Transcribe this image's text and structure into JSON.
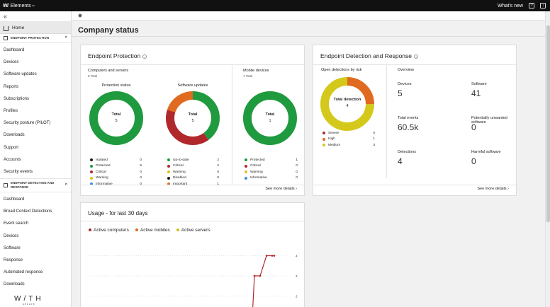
{
  "topbar": {
    "brand": "Elements",
    "whats_new": "What's new"
  },
  "sidebar": {
    "home": "Home",
    "section1": "ENDPOINT PROTECTION",
    "ep_items": [
      "Dashboard",
      "Devices",
      "Software updates",
      "Reports",
      "Subscriptions",
      "Profiles",
      "Security posture (PILOT)",
      "Downloads",
      "Support",
      "Accounts",
      "Security events"
    ],
    "section2": "ENDPOINT DETECTION AND RESPONSE",
    "edr_items": [
      "Dashboard",
      "Broad Context Detections",
      "Event search",
      "Devices",
      "Software",
      "Response",
      "Automated response",
      "Downloads"
    ],
    "logo": "W/TH",
    "logo_sub": "secure"
  },
  "page": {
    "title": "Company status"
  },
  "endpoint_protection": {
    "title": "Endpoint Protection",
    "computers_title": "Computers and servers",
    "computers_total": "5 Total",
    "protection_status": {
      "title": "Protection status",
      "center_label": "Total",
      "center_value": "5",
      "legend": [
        {
          "label": "Isolated",
          "value": "0",
          "color": "#1a1a1a"
        },
        {
          "label": "Protected",
          "value": "5",
          "color": "#1f9a3e"
        },
        {
          "label": "Critical",
          "value": "0",
          "color": "#b0282c"
        },
        {
          "label": "Warning",
          "value": "0",
          "color": "#e0c01a"
        },
        {
          "label": "Informative",
          "value": "0",
          "color": "#3b8fd6"
        }
      ]
    },
    "software_updates": {
      "title": "Software updates",
      "center_label": "Total",
      "center_value": "5",
      "legend": [
        {
          "label": "Up-to-date",
          "value": "2",
          "color": "#1f9a3e"
        },
        {
          "label": "Critical",
          "value": "2",
          "color": "#b0282c"
        },
        {
          "label": "Warning",
          "value": "0",
          "color": "#e0c01a"
        },
        {
          "label": "Disabled",
          "value": "0",
          "color": "#1a1a1a"
        },
        {
          "label": "Important",
          "value": "1",
          "color": "#e06a1f"
        }
      ]
    },
    "mobile": {
      "title": "Mobile devices",
      "total": "1 Total",
      "center_label": "Total",
      "center_value": "1",
      "legend": [
        {
          "label": "Protected",
          "value": "1",
          "color": "#1f9a3e"
        },
        {
          "label": "Critical",
          "value": "0",
          "color": "#b0282c"
        },
        {
          "label": "Warning",
          "value": "0",
          "color": "#e0c01a"
        },
        {
          "label": "Informative",
          "value": "0",
          "color": "#3b8fd6"
        }
      ]
    },
    "see_more": "See more details"
  },
  "edr": {
    "title": "Endpoint Detection and Response",
    "open_detections_title": "Open detections by risk",
    "center_label": "Total detection",
    "center_value": "4",
    "legend": [
      {
        "label": "Severe",
        "value": "0",
        "color": "#b0282c"
      },
      {
        "label": "High",
        "value": "1",
        "color": "#e06a1f"
      },
      {
        "label": "Medium",
        "value": "3",
        "color": "#d4c81a"
      }
    ],
    "overview_title": "Overview",
    "stats": [
      {
        "label": "Devices",
        "value": "5"
      },
      {
        "label": "Software",
        "value": "41"
      },
      {
        "label": "Total events",
        "value": "60.5k"
      },
      {
        "label": "Potentially unwanted software",
        "value": "0"
      },
      {
        "label": "Detections",
        "value": "4"
      },
      {
        "label": "Harmful software",
        "value": "0"
      }
    ],
    "see_more": "See more details"
  },
  "usage": {
    "title": "Usage - for last 30 days",
    "legend": [
      {
        "label": "Active computers",
        "color": "#b0282c"
      },
      {
        "label": "Active mobiles",
        "color": "#e06a1f"
      },
      {
        "label": "Active servers",
        "color": "#c9c21a"
      }
    ]
  },
  "chart_data": {
    "type": "line",
    "title": "Usage - for last 30 days",
    "y_ticks": [
      "4",
      "3",
      "2"
    ],
    "series": [
      {
        "name": "Active computers",
        "x": [
          1,
          2,
          3,
          4,
          5,
          6
        ],
        "values": [
          1,
          3,
          3,
          4,
          4,
          4
        ]
      }
    ]
  }
}
